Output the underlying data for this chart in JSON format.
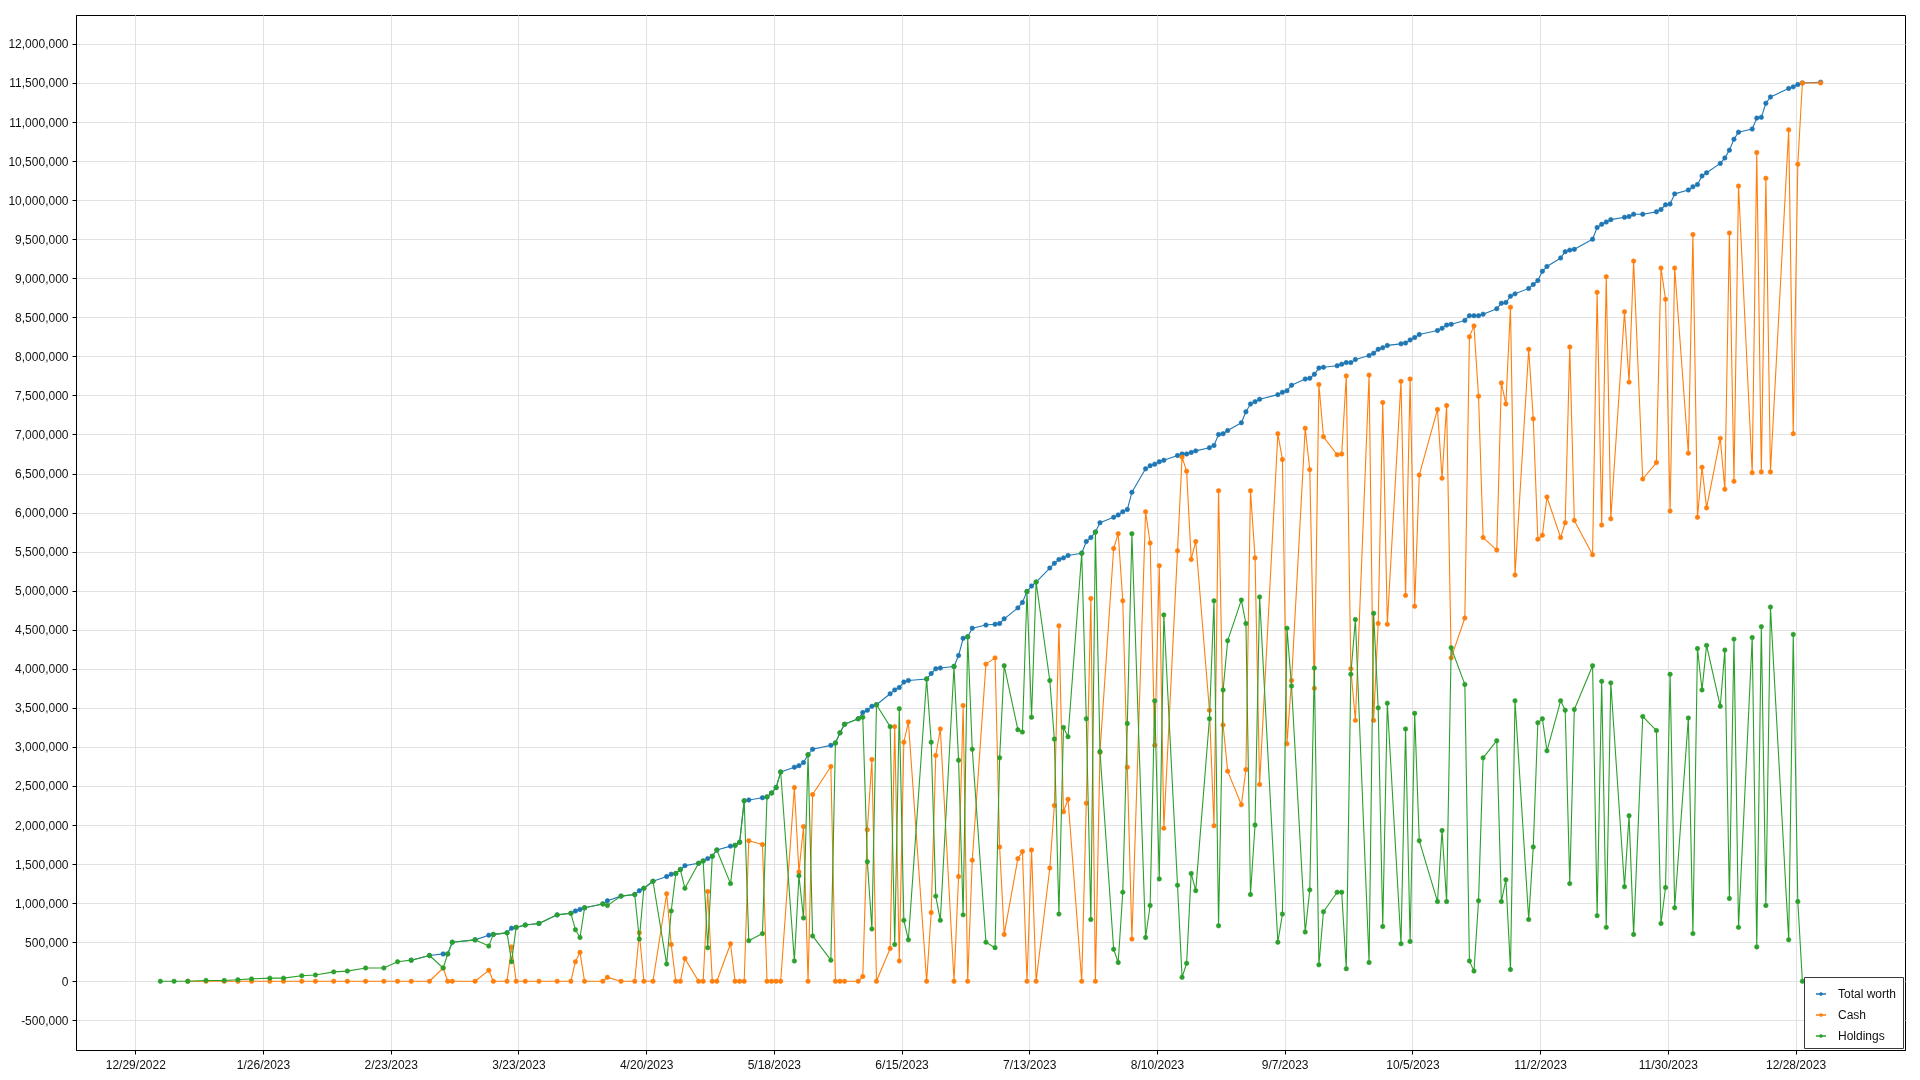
{
  "chart_data": {
    "type": "line",
    "x": [
      "2023-01-03T12:00",
      "2023-01-06T12:00",
      "2023-01-09T12:00",
      "2023-01-13T12:00",
      "2023-01-17T12:00",
      "2023-01-20T12:00",
      "2023-01-23T12:00",
      "2023-01-27T12:00",
      "2023-01-30T12:00",
      "2023-02-03T12:00",
      "2023-02-06T12:00",
      "2023-02-10T12:00",
      "2023-02-13T12:00",
      "2023-02-17T12:00",
      "2023-02-21T12:00",
      "2023-02-24T12:00",
      "2023-02-27T12:00",
      "2023-03-03T12:00",
      "2023-03-06T12:00",
      "2023-03-07T12:00",
      "2023-03-08T12:00",
      "2023-03-13T12:00",
      "2023-03-16T12:00",
      "2023-03-17T12:00",
      "2023-03-20T12:00",
      "2023-03-21T12:00",
      "2023-03-22T12:00",
      "2023-03-24T12:00",
      "2023-03-27T12:00",
      "2023-03-31T12:00",
      "2023-04-03T12:00",
      "2023-04-04T12:00",
      "2023-04-05T12:00",
      "2023-04-06T12:00",
      "2023-04-10T12:00",
      "2023-04-11T12:00",
      "2023-04-14T12:00",
      "2023-04-17T12:00",
      "2023-04-18T12:00",
      "2023-04-19T12:00",
      "2023-04-21T12:00",
      "2023-04-24T12:00",
      "2023-04-25T12:00",
      "2023-04-26T12:00",
      "2023-04-27T12:00",
      "2023-04-28T12:00",
      "2023-05-01T12:00",
      "2023-05-02T12:00",
      "2023-05-03T12:00",
      "2023-05-04T12:00",
      "2023-05-05T12:00",
      "2023-05-08T12:00",
      "2023-05-09T12:00",
      "2023-05-10T12:00",
      "2023-05-11T12:00",
      "2023-05-12T12:00",
      "2023-05-15T12:00",
      "2023-05-16T12:00",
      "2023-05-17T12:00",
      "2023-05-18T12:00",
      "2023-05-19T12:00",
      "2023-05-22T12:00",
      "2023-05-23T12:00",
      "2023-05-24T12:00",
      "2023-05-25T12:00",
      "2023-05-26T12:00",
      "2023-05-30T12:00",
      "2023-05-31T12:00",
      "2023-06-01T12:00",
      "2023-06-02T12:00",
      "2023-06-05T12:00",
      "2023-06-06T12:00",
      "2023-06-07T12:00",
      "2023-06-08T12:00",
      "2023-06-09T12:00",
      "2023-06-12T12:00",
      "2023-06-13T12:00",
      "2023-06-14T12:00",
      "2023-06-15T12:00",
      "2023-06-16T12:00",
      "2023-06-20T12:00",
      "2023-06-21T12:00",
      "2023-06-22T12:00",
      "2023-06-23T12:00",
      "2023-06-26T12:00",
      "2023-06-27T12:00",
      "2023-06-28T12:00",
      "2023-06-29T12:00",
      "2023-06-30T12:00",
      "2023-07-03T12:00",
      "2023-07-05T12:00",
      "2023-07-06T12:00",
      "2023-07-07T12:00",
      "2023-07-10T12:00",
      "2023-07-11T12:00",
      "2023-07-12T12:00",
      "2023-07-13T12:00",
      "2023-07-14T12:00",
      "2023-07-17T12:00",
      "2023-07-18T12:00",
      "2023-07-19T12:00",
      "2023-07-20T12:00",
      "2023-07-21T12:00",
      "2023-07-24T12:00",
      "2023-07-25T12:00",
      "2023-07-26T12:00",
      "2023-07-27T12:00",
      "2023-07-28T12:00",
      "2023-07-31T12:00",
      "2023-08-01T12:00",
      "2023-08-02T12:00",
      "2023-08-03T12:00",
      "2023-08-04T12:00",
      "2023-08-07T12:00",
      "2023-08-08T12:00",
      "2023-08-09T12:00",
      "2023-08-10T12:00",
      "2023-08-11T12:00",
      "2023-08-14T12:00",
      "2023-08-15T12:00",
      "2023-08-16T12:00",
      "2023-08-17T12:00",
      "2023-08-18T12:00",
      "2023-08-21T12:00",
      "2023-08-22T12:00",
      "2023-08-23T12:00",
      "2023-08-24T12:00",
      "2023-08-25T12:00",
      "2023-08-28T12:00",
      "2023-08-29T12:00",
      "2023-08-30T12:00",
      "2023-08-31T12:00",
      "2023-09-01T12:00",
      "2023-09-05T12:00",
      "2023-09-06T12:00",
      "2023-09-07T12:00",
      "2023-09-08T12:00",
      "2023-09-11T12:00",
      "2023-09-12T12:00",
      "2023-09-13T12:00",
      "2023-09-14T12:00",
      "2023-09-15T12:00",
      "2023-09-18T12:00",
      "2023-09-19T12:00",
      "2023-09-20T12:00",
      "2023-09-21T12:00",
      "2023-09-22T12:00",
      "2023-09-25T12:00",
      "2023-09-26T12:00",
      "2023-09-27T12:00",
      "2023-09-28T12:00",
      "2023-09-29T12:00",
      "2023-10-02T12:00",
      "2023-10-03T12:00",
      "2023-10-04T12:00",
      "2023-10-05T12:00",
      "2023-10-06T12:00",
      "2023-10-10T12:00",
      "2023-10-11T12:00",
      "2023-10-12T12:00",
      "2023-10-13T12:00",
      "2023-10-16T12:00",
      "2023-10-17T12:00",
      "2023-10-18T12:00",
      "2023-10-19T12:00",
      "2023-10-20T12:00",
      "2023-10-23T12:00",
      "2023-10-24T12:00",
      "2023-10-25T12:00",
      "2023-10-26T12:00",
      "2023-10-27T12:00",
      "2023-10-30T12:00",
      "2023-10-31T12:00",
      "2023-11-01T12:00",
      "2023-11-02T12:00",
      "2023-11-03T12:00",
      "2023-11-06T12:00",
      "2023-11-07T12:00",
      "2023-11-08T12:00",
      "2023-11-09T12:00",
      "2023-11-13T12:00",
      "2023-11-14T12:00",
      "2023-11-15T12:00",
      "2023-11-16T12:00",
      "2023-11-17T12:00",
      "2023-11-20T12:00",
      "2023-11-21T12:00",
      "2023-11-22T12:00",
      "2023-11-24T12:00",
      "2023-11-27T12:00",
      "2023-11-28T12:00",
      "2023-11-29T12:00",
      "2023-11-30T12:00",
      "2023-12-01T12:00",
      "2023-12-04T12:00",
      "2023-12-05T12:00",
      "2023-12-06T12:00",
      "2023-12-07T12:00",
      "2023-12-08T12:00",
      "2023-12-11T12:00",
      "2023-12-12T12:00",
      "2023-12-13T12:00",
      "2023-12-14T12:00",
      "2023-12-15T12:00",
      "2023-12-18T12:00",
      "2023-12-19T12:00",
      "2023-12-20T12:00",
      "2023-12-21T12:00",
      "2023-12-22T12:00",
      "2023-12-26T12:00",
      "2023-12-27T12:00",
      "2023-12-28T12:00",
      "2023-12-29T12:00",
      "2024-01-02T12:00"
    ],
    "xlim": [
      "2022-12-16",
      "2024-01-21"
    ],
    "xticks": [
      {
        "value": "2022-12-29",
        "label": "12/29/2022"
      },
      {
        "value": "2023-01-26",
        "label": "1/26/2023"
      },
      {
        "value": "2023-02-23",
        "label": "2/23/2023"
      },
      {
        "value": "2023-03-23",
        "label": "3/23/2023"
      },
      {
        "value": "2023-04-20",
        "label": "4/20/2023"
      },
      {
        "value": "2023-05-18",
        "label": "5/18/2023"
      },
      {
        "value": "2023-06-15",
        "label": "6/15/2023"
      },
      {
        "value": "2023-07-13",
        "label": "7/13/2023"
      },
      {
        "value": "2023-08-10",
        "label": "8/10/2023"
      },
      {
        "value": "2023-09-07",
        "label": "9/7/2023"
      },
      {
        "value": "2023-10-05",
        "label": "10/5/2023"
      },
      {
        "value": "2023-11-02",
        "label": "11/2/2023"
      },
      {
        "value": "2023-11-30",
        "label": "11/30/2023"
      },
      {
        "value": "2023-12-28",
        "label": "12/28/2023"
      }
    ],
    "ylim": [
      -880000,
      12370000
    ],
    "yticks": [
      {
        "value": -500000,
        "label": "-500,000"
      },
      0,
      {
        "value": 500000,
        "label": "500,000"
      },
      {
        "value": 1000000,
        "label": "1,000,000"
      },
      {
        "value": 1500000,
        "label": "1,500,000"
      },
      {
        "value": 2000000,
        "label": "2,000,000"
      },
      {
        "value": 2500000,
        "label": "2,500,000"
      },
      {
        "value": 3000000,
        "label": "3,000,000"
      },
      {
        "value": 3500000,
        "label": "3,500,000"
      },
      {
        "value": 4000000,
        "label": "4,000,000"
      },
      {
        "value": 4500000,
        "label": "4,500,000"
      },
      {
        "value": 5000000,
        "label": "5,000,000"
      },
      {
        "value": 5500000,
        "label": "5,500,000"
      },
      {
        "value": 6000000,
        "label": "6,000,000"
      },
      {
        "value": 6500000,
        "label": "6,500,000"
      },
      {
        "value": 7000000,
        "label": "7,000,000"
      },
      {
        "value": 7500000,
        "label": "7,500,000"
      },
      {
        "value": 8000000,
        "label": "8,000,000"
      },
      {
        "value": 8500000,
        "label": "8,500,000"
      },
      {
        "value": 9000000,
        "label": "9,000,000"
      },
      {
        "value": 9500000,
        "label": "9,500,000"
      },
      {
        "value": 10000000,
        "label": "10,000,000"
      },
      {
        "value": 10500000,
        "label": "10,500,000"
      },
      {
        "value": 11000000,
        "label": "11,000,000"
      },
      {
        "value": 11500000,
        "label": "11,500,000"
      },
      {
        "value": 12000000,
        "label": "12,000,000"
      }
    ],
    "series": [
      {
        "name": "Total worth",
        "color": "#1f77b4",
        "values": [
          null,
          null,
          null,
          null,
          null,
          null,
          null,
          null,
          null,
          null,
          null,
          null,
          null,
          null,
          null,
          null,
          270000,
          330000,
          350000,
          350000,
          500000,
          530000,
          590000,
          600000,
          620000,
          680000,
          690000,
          720000,
          740000,
          850000,
          870000,
          900000,
          920000,
          940000,
          990000,
          1030000,
          1090000,
          1110000,
          1160000,
          1190000,
          1280000,
          1340000,
          1370000,
          1380000,
          1430000,
          1480000,
          1510000,
          1540000,
          1570000,
          1600000,
          1680000,
          1730000,
          1740000,
          1780000,
          2310000,
          2320000,
          2350000,
          2360000,
          2410000,
          2480000,
          2680000,
          2740000,
          2760000,
          2800000,
          2900000,
          2970000,
          3020000,
          3050000,
          3180000,
          3290000,
          3360000,
          3440000,
          3470000,
          3520000,
          3540000,
          3680000,
          3730000,
          3760000,
          3830000,
          3850000,
          3870000,
          3940000,
          4000000,
          4010000,
          4030000,
          4170000,
          4390000,
          4410000,
          4520000,
          4560000,
          4570000,
          4580000,
          4640000,
          4780000,
          4850000,
          4990000,
          5060000,
          5110000,
          5290000,
          5350000,
          5400000,
          5420000,
          5450000,
          5480000,
          5630000,
          5680000,
          5750000,
          5870000,
          5940000,
          5970000,
          6010000,
          6040000,
          6260000,
          6560000,
          6600000,
          6620000,
          6650000,
          6670000,
          6730000,
          6750000,
          6750000,
          6770000,
          6790000,
          6830000,
          6860000,
          7000000,
          7010000,
          7050000,
          7150000,
          7290000,
          7390000,
          7420000,
          7450000,
          7510000,
          7540000,
          7560000,
          7630000,
          7710000,
          7720000,
          7770000,
          7850000,
          7860000,
          7880000,
          7900000,
          7920000,
          7920000,
          7960000,
          8010000,
          8040000,
          8090000,
          8110000,
          8140000,
          8160000,
          8170000,
          8210000,
          8240000,
          8280000,
          8330000,
          8360000,
          8400000,
          8410000,
          8460000,
          8520000,
          8520000,
          8520000,
          8540000,
          8610000,
          8680000,
          8690000,
          8770000,
          8800000,
          8870000,
          8920000,
          8970000,
          9090000,
          9150000,
          9260000,
          9340000,
          9360000,
          9370000,
          9500000,
          9650000,
          9690000,
          9720000,
          9750000,
          9780000,
          9790000,
          9820000,
          9820000,
          9850000,
          9880000,
          9940000,
          9950000,
          10080000,
          10130000,
          10170000,
          10200000,
          10310000,
          10350000,
          10470000,
          10540000,
          10640000,
          10780000,
          10870000,
          10910000,
          11050000,
          11060000,
          11240000,
          11320000,
          11430000,
          11450000,
          11480000,
          11500000,
          11510000
        ]
      },
      {
        "name": "Cash",
        "color": "#ff7f0e",
        "values": [
          null,
          null,
          0,
          0,
          0,
          0,
          0,
          0,
          0,
          0,
          0,
          0,
          0,
          0,
          0,
          0,
          0,
          0,
          170000,
          0,
          0,
          0,
          140000,
          0,
          0,
          440000,
          0,
          0,
          0,
          0,
          0,
          250000,
          370000,
          0,
          0,
          50000,
          0,
          0,
          620000,
          0,
          0,
          1120000,
          470000,
          0,
          0,
          290000,
          0,
          0,
          1150000,
          0,
          0,
          480000,
          0,
          0,
          0,
          1800000,
          1750000,
          0,
          0,
          0,
          0,
          2480000,
          1400000,
          1980000,
          0,
          2390000,
          2750000,
          0,
          0,
          0,
          0,
          60000,
          1940000,
          2840000,
          0,
          420000,
          3260000,
          260000,
          3060000,
          3320000,
          0,
          880000,
          2890000,
          3230000,
          0,
          1340000,
          3530000,
          0,
          1550000,
          4060000,
          4140000,
          1720000,
          600000,
          1570000,
          1660000,
          0,
          1680000,
          0,
          1450000,
          2250000,
          4550000,
          2170000,
          2330000,
          0,
          2280000,
          4900000,
          0,
          2930000,
          5540000,
          5730000,
          4870000,
          2740000,
          540000,
          6010000,
          5610000,
          3020000,
          5320000,
          1960000,
          5510000,
          6710000,
          6530000,
          5400000,
          5630000,
          3470000,
          1990000,
          6280000,
          3280000,
          2690000,
          2260000,
          2710000,
          6280000,
          5420000,
          2520000,
          7010000,
          6680000,
          3040000,
          3850000,
          7080000,
          6550000,
          3750000,
          7640000,
          6970000,
          6740000,
          6750000,
          7750000,
          4000000,
          3340000,
          7760000,
          3340000,
          4580000,
          7410000,
          4570000,
          7680000,
          4940000,
          7710000,
          4800000,
          6480000,
          7320000,
          6440000,
          7370000,
          4140000,
          4650000,
          8250000,
          8390000,
          7490000,
          5680000,
          5520000,
          7660000,
          7390000,
          8630000,
          5200000,
          8090000,
          7200000,
          5660000,
          5710000,
          6200000,
          5680000,
          5870000,
          8120000,
          5900000,
          5460000,
          8820000,
          5840000,
          9020000,
          5920000,
          8570000,
          7670000,
          9220000,
          6430000,
          6640000,
          9130000,
          8730000,
          6020000,
          9130000,
          6760000,
          9560000,
          5940000,
          6580000,
          6060000,
          6950000,
          6300000,
          9580000,
          6400000,
          10180000,
          6510000,
          10610000,
          6520000,
          10280000,
          6520000,
          10900000,
          7010000,
          10460000,
          11500000,
          11500000
        ]
      },
      {
        "name": "Holdings",
        "color": "#2ca02c",
        "values": [
          0,
          0,
          0,
          10000,
          10000,
          20000,
          30000,
          40000,
          40000,
          70000,
          80000,
          120000,
          130000,
          170000,
          170000,
          250000,
          270000,
          330000,
          170000,
          350000,
          500000,
          530000,
          450000,
          600000,
          620000,
          250000,
          690000,
          720000,
          740000,
          850000,
          870000,
          660000,
          560000,
          940000,
          990000,
          970000,
          1090000,
          1110000,
          540000,
          1190000,
          1280000,
          220000,
          900000,
          1380000,
          1430000,
          1190000,
          1510000,
          1540000,
          430000,
          1600000,
          1680000,
          1250000,
          1740000,
          1780000,
          2310000,
          520000,
          610000,
          2360000,
          2410000,
          2480000,
          2680000,
          260000,
          1350000,
          810000,
          2900000,
          580000,
          270000,
          3050000,
          3180000,
          3290000,
          3360000,
          3380000,
          1530000,
          670000,
          3540000,
          3260000,
          470000,
          3490000,
          780000,
          530000,
          3870000,
          3060000,
          1090000,
          780000,
          4030000,
          2830000,
          850000,
          4410000,
          2970000,
          500000,
          430000,
          2860000,
          4040000,
          3220000,
          3190000,
          4990000,
          3380000,
          5110000,
          3850000,
          3100000,
          860000,
          3250000,
          3130000,
          5480000,
          3360000,
          790000,
          5750000,
          2940000,
          410000,
          240000,
          1140000,
          3300000,
          5730000,
          560000,
          970000,
          3590000,
          1310000,
          4690000,
          1230000,
          50000,
          230000,
          1380000,
          1160000,
          3360000,
          4870000,
          710000,
          3730000,
          4360000,
          4880000,
          4580000,
          1110000,
          2000000,
          4920000,
          500000,
          860000,
          4520000,
          3780000,
          630000,
          1170000,
          4010000,
          210000,
          890000,
          1140000,
          1140000,
          160000,
          3930000,
          4630000,
          240000,
          4710000,
          3500000,
          700000,
          3560000,
          480000,
          3230000,
          510000,
          3430000,
          1800000,
          1020000,
          1930000,
          1020000,
          4270000,
          3800000,
          260000,
          130000,
          1030000,
          2860000,
          3080000,
          1020000,
          1300000,
          150000,
          3590000,
          790000,
          1720000,
          3310000,
          3360000,
          2950000,
          3590000,
          3470000,
          1250000,
          3480000,
          4040000,
          840000,
          3840000,
          690000,
          3820000,
          1210000,
          2120000,
          600000,
          3390000,
          3210000,
          740000,
          1200000,
          3930000,
          940000,
          3370000,
          610000,
          4260000,
          3730000,
          4300000,
          3520000,
          4240000,
          1060000,
          4380000,
          690000,
          4400000,
          440000,
          4540000,
          970000,
          4790000,
          530000,
          4440000,
          1020000,
          0,
          null
        ]
      }
    ],
    "grid": true,
    "legend": "bottom right",
    "marker": "circle",
    "line_style": "solid"
  }
}
